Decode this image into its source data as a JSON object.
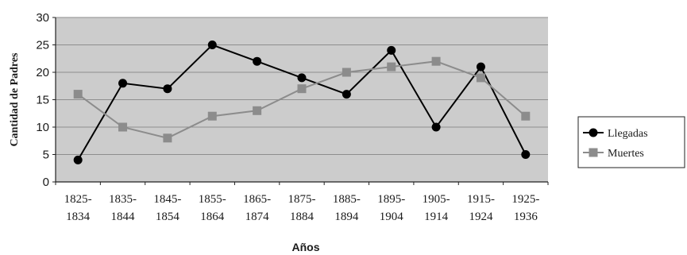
{
  "chart_data": {
    "type": "line",
    "xlabel": "Años",
    "ylabel": "Cantidad de Padres",
    "ylim": [
      0,
      30
    ],
    "yticks": [
      0,
      5,
      10,
      15,
      20,
      25,
      30
    ],
    "grid": true,
    "legend": "right",
    "categories": [
      [
        "1825-",
        "1834"
      ],
      [
        "1835-",
        "1844"
      ],
      [
        "1845-",
        "1854"
      ],
      [
        "1855-",
        "1864"
      ],
      [
        "1865-",
        "1874"
      ],
      [
        "1875-",
        "1884"
      ],
      [
        "1885-",
        "1894"
      ],
      [
        "1895-",
        "1904"
      ],
      [
        "1905-",
        "1914"
      ],
      [
        "1915-",
        "1924"
      ],
      [
        "1925-",
        "1936"
      ]
    ],
    "series": [
      {
        "name": "Llegadas",
        "marker": "circle",
        "color": "#000000",
        "values": [
          4,
          18,
          17,
          25,
          22,
          19,
          16,
          24,
          10,
          21,
          5
        ]
      },
      {
        "name": "Muertes",
        "marker": "square",
        "color": "#8c8c8c",
        "values": [
          16,
          10,
          8,
          12,
          13,
          17,
          20,
          21,
          22,
          19,
          12
        ]
      }
    ],
    "colors": {
      "plot_bg": "#cccccc",
      "outer_bg": "#ffffff",
      "grid": "#8e8e8e"
    }
  }
}
